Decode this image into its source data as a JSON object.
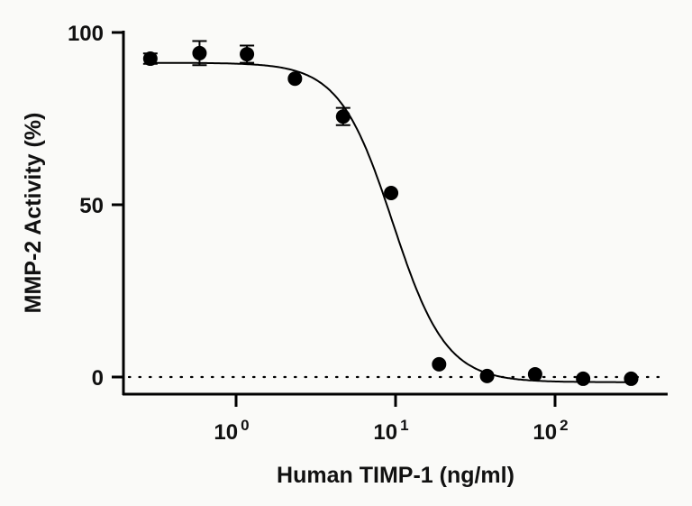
{
  "chart_data": {
    "type": "scatter",
    "title": "",
    "xlabel": "Human TIMP-1 (ng/ml)",
    "ylabel": "MMP-2 Activity (%)",
    "x_scale": "log",
    "xlim": [
      0.2,
      500
    ],
    "ylim": [
      -5,
      100
    ],
    "x_ticks": [
      {
        "value": 1,
        "base": "10",
        "exp": "0"
      },
      {
        "value": 10,
        "base": "10",
        "exp": "1"
      },
      {
        "value": 100,
        "base": "10",
        "exp": "2"
      }
    ],
    "y_ticks": [
      {
        "value": 0,
        "label": "0"
      },
      {
        "value": 50,
        "label": "50"
      },
      {
        "value": 100,
        "label": "100"
      }
    ],
    "grid": false,
    "reference_line": {
      "y": 0,
      "style": "dotted"
    },
    "points": [
      {
        "x": 0.29,
        "y": 92.4,
        "err": 1.5
      },
      {
        "x": 0.59,
        "y": 94.0,
        "err": 3.5
      },
      {
        "x": 1.17,
        "y": 93.7,
        "err": 2.5
      },
      {
        "x": 2.34,
        "y": 86.6,
        "err": 0
      },
      {
        "x": 4.69,
        "y": 75.6,
        "err": 2.5
      },
      {
        "x": 9.38,
        "y": 53.4,
        "err": 0
      },
      {
        "x": 18.75,
        "y": 3.7,
        "err": 0
      },
      {
        "x": 37.5,
        "y": 0.3,
        "err": 0
      },
      {
        "x": 75,
        "y": 0.8,
        "err": 0
      },
      {
        "x": 150,
        "y": -0.5,
        "err": 0
      },
      {
        "x": 300,
        "y": -0.5,
        "err": 0
      }
    ],
    "fit": {
      "model": "4PL",
      "top": 91.2,
      "bottom": -1.5,
      "ic50": 9.6,
      "hill": -2.6
    },
    "colors": {
      "marker": "#000000",
      "line": "#000000"
    }
  }
}
